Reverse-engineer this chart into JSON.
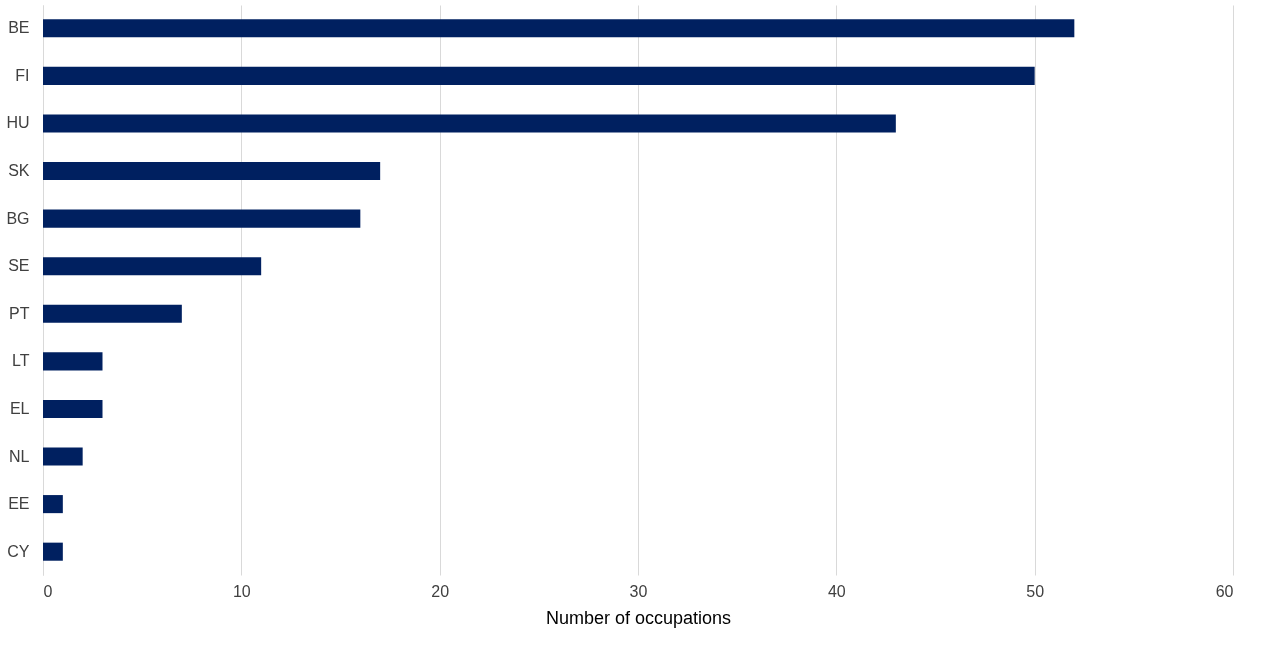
{
  "chart_data": {
    "type": "bar",
    "orientation": "horizontal",
    "xlabel": "Number of occupations",
    "categories": [
      "BE",
      "FI",
      "HU",
      "SK",
      "BG",
      "SE",
      "PT",
      "LT",
      "EL",
      "NL",
      "EE",
      "CY"
    ],
    "values": [
      52,
      50,
      43,
      17,
      16,
      11,
      7,
      3,
      3,
      2,
      1,
      1
    ],
    "color": "#002060",
    "xlim": [
      0,
      60
    ],
    "xticks": [
      0,
      10,
      20,
      30,
      40,
      50,
      60
    ],
    "grid": "x"
  }
}
